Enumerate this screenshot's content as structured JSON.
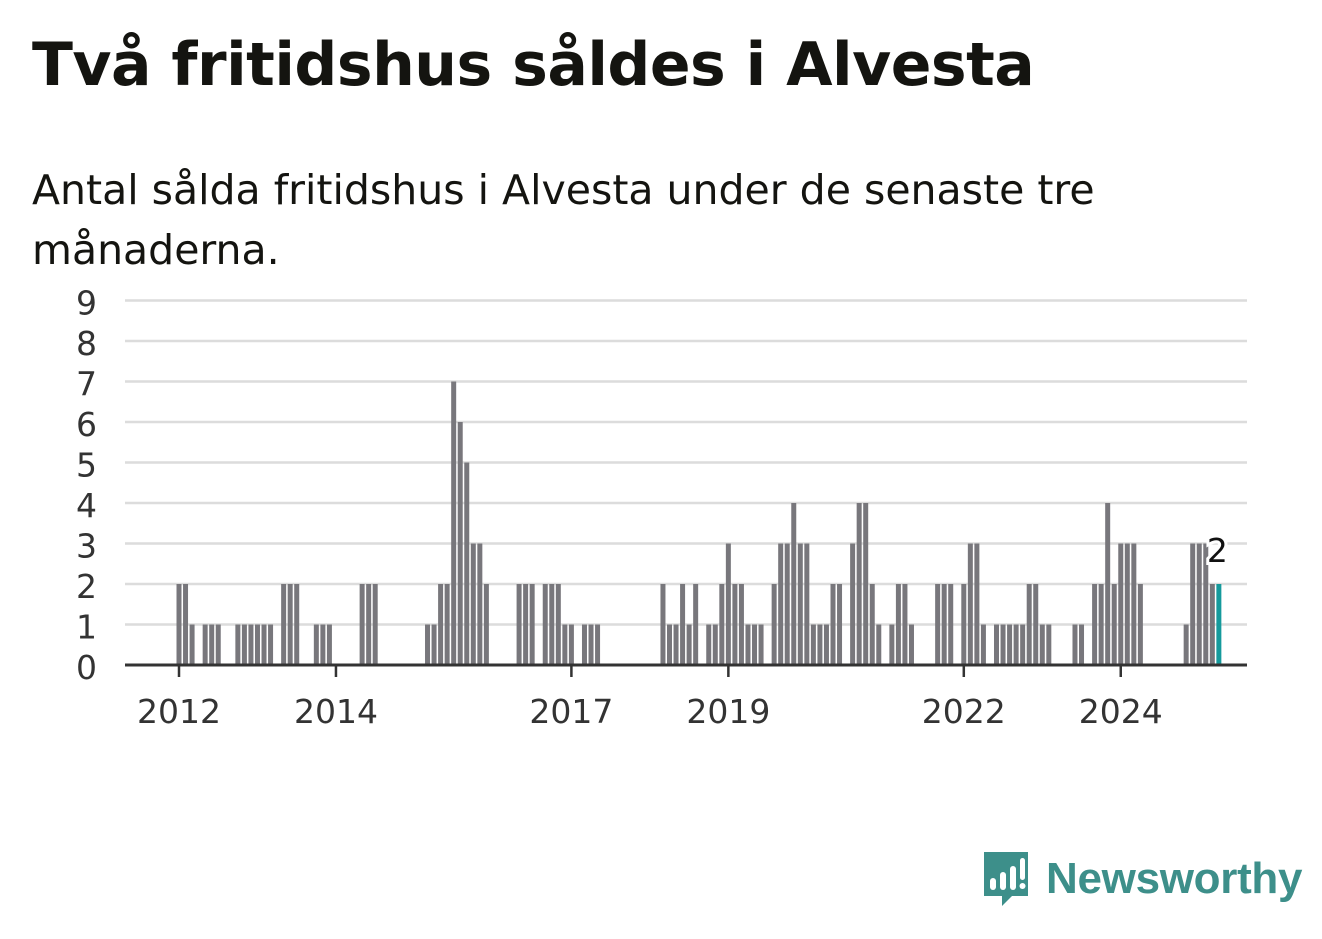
{
  "title": "Två fritidshus såldes i Alvesta",
  "subtitle": "Antal sålda fritidshus i Alvesta under de senaste tre månaderna.",
  "brand": {
    "name": "Newsworthy",
    "color": "#3d8f8a"
  },
  "colors": {
    "bar": "#78777c",
    "highlight": "#159a9c",
    "grid": "#dcdcdc",
    "axis": "#333333"
  },
  "chart_data": {
    "type": "bar",
    "x_start": "2011-11",
    "x_ticks": [
      {
        "label": "2012",
        "index": 2
      },
      {
        "label": "2014",
        "index": 26
      },
      {
        "label": "2017",
        "index": 62
      },
      {
        "label": "2019",
        "index": 86
      },
      {
        "label": "2022",
        "index": 122
      },
      {
        "label": "2024",
        "index": 146
      }
    ],
    "y_ticks": [
      0,
      1,
      2,
      3,
      4,
      5,
      6,
      7,
      8,
      9
    ],
    "ylim": [
      0,
      9
    ],
    "grid": true,
    "values": [
      0,
      0,
      2,
      2,
      1,
      0,
      1,
      1,
      1,
      0,
      0,
      1,
      1,
      1,
      1,
      1,
      1,
      0,
      2,
      2,
      2,
      0,
      0,
      1,
      1,
      1,
      0,
      0,
      0,
      0,
      2,
      2,
      2,
      0,
      0,
      0,
      0,
      0,
      0,
      0,
      1,
      1,
      2,
      2,
      7,
      6,
      5,
      3,
      3,
      2,
      0,
      0,
      0,
      0,
      2,
      2,
      2,
      0,
      2,
      2,
      2,
      1,
      1,
      0,
      1,
      1,
      1,
      0,
      0,
      0,
      0,
      0,
      0,
      0,
      0,
      0,
      2,
      1,
      1,
      2,
      1,
      2,
      0,
      1,
      1,
      2,
      3,
      2,
      2,
      1,
      1,
      1,
      0,
      2,
      3,
      3,
      4,
      3,
      3,
      1,
      1,
      1,
      2,
      2,
      0,
      3,
      4,
      4,
      2,
      1,
      0,
      1,
      2,
      2,
      1,
      0,
      0,
      0,
      2,
      2,
      2,
      0,
      2,
      3,
      3,
      1,
      0,
      1,
      1,
      1,
      1,
      1,
      2,
      2,
      1,
      1,
      0,
      0,
      0,
      1,
      1,
      0,
      2,
      2,
      4,
      2,
      3,
      3,
      3,
      2,
      0,
      0,
      0,
      0,
      0,
      0,
      1,
      3,
      3,
      3,
      2,
      2
    ],
    "last_value_label": "2"
  }
}
